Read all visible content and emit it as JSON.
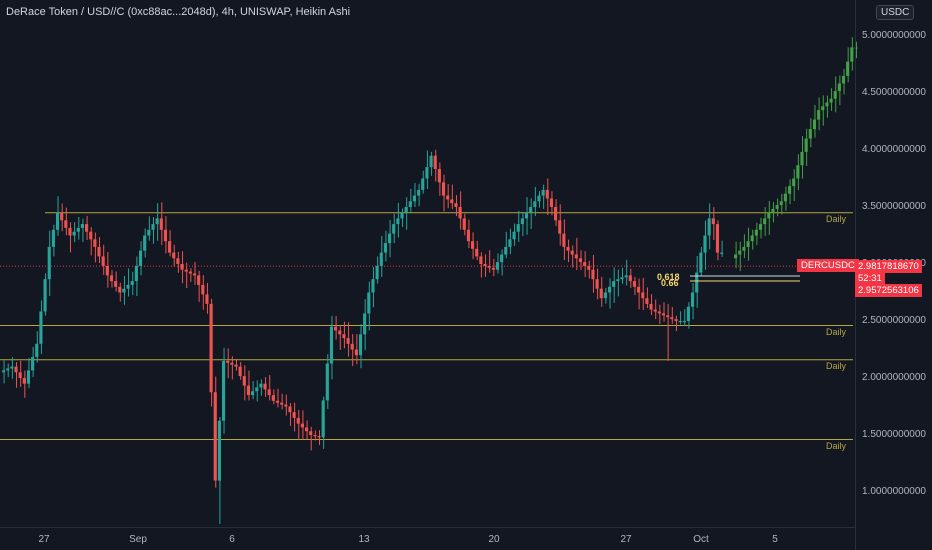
{
  "header": {
    "title": "DeRace Token / USD//C (0xc88ac...2048d), 4h, UNISWAP, Heikin Ashi",
    "currency": "USDC"
  },
  "y_axis": {
    "labels": [
      "5.0000000000",
      "4.5000000000",
      "4.0000000000",
      "3.5000000000",
      "3.0000000000",
      "2.5000000000",
      "2.0000000000",
      "1.5000000000",
      "1.0000000000"
    ]
  },
  "x_axis": {
    "labels": [
      "27",
      "Sep",
      "6",
      "13",
      "20",
      "27",
      "Oct",
      "5"
    ]
  },
  "levels": {
    "label": "Daily",
    "values": [
      3.45,
      2.46,
      2.16,
      1.46
    ]
  },
  "price_tags": {
    "symbol": "DERCUSDC",
    "price": "2.9817818670",
    "countdown": "52:31",
    "price2": "2.9572563106"
  },
  "fib": {
    "label1": "0.618",
    "label2": "0.66"
  },
  "colors": {
    "up": "#26a69a",
    "down": "#ef5350",
    "projection": "#43a047",
    "level": "#b5a642",
    "background": "#131722"
  },
  "chart_data": {
    "type": "candlestick",
    "chart_style": "Heikin Ashi",
    "interval": "4h",
    "exchange": "UNISWAP",
    "yrange": [
      0.7,
      5.2
    ],
    "xlabels": [
      "27",
      "Sep",
      "6",
      "13",
      "20",
      "27",
      "Oct",
      "5"
    ],
    "price_path": [
      [
        0,
        2.05
      ],
      [
        3,
        2.1
      ],
      [
        6,
        1.95
      ],
      [
        9,
        2.3
      ],
      [
        12,
        3.15
      ],
      [
        14,
        3.45
      ],
      [
        17,
        3.25
      ],
      [
        20,
        3.35
      ],
      [
        23,
        3.15
      ],
      [
        26,
        2.9
      ],
      [
        29,
        2.75
      ],
      [
        32,
        2.85
      ],
      [
        35,
        3.25
      ],
      [
        38,
        3.4
      ],
      [
        41,
        3.1
      ],
      [
        44,
        2.95
      ],
      [
        47,
        2.9
      ],
      [
        50,
        2.65
      ],
      [
        52,
        1.1
      ],
      [
        54,
        2.15
      ],
      [
        57,
        2.1
      ],
      [
        60,
        1.85
      ],
      [
        63,
        1.95
      ],
      [
        66,
        1.8
      ],
      [
        69,
        1.75
      ],
      [
        72,
        1.6
      ],
      [
        75,
        1.5
      ],
      [
        77,
        1.48
      ],
      [
        80,
        2.45
      ],
      [
        83,
        2.35
      ],
      [
        86,
        2.2
      ],
      [
        89,
        2.75
      ],
      [
        92,
        3.1
      ],
      [
        95,
        3.35
      ],
      [
        98,
        3.5
      ],
      [
        101,
        3.65
      ],
      [
        104,
        3.95
      ],
      [
        107,
        3.6
      ],
      [
        110,
        3.5
      ],
      [
        113,
        3.2
      ],
      [
        116,
        3.0
      ],
      [
        119,
        2.95
      ],
      [
        122,
        3.15
      ],
      [
        125,
        3.35
      ],
      [
        128,
        3.5
      ],
      [
        131,
        3.65
      ],
      [
        133,
        3.5
      ],
      [
        136,
        3.15
      ],
      [
        139,
        3.05
      ],
      [
        142,
        2.95
      ],
      [
        145,
        2.7
      ],
      [
        148,
        2.85
      ],
      [
        151,
        2.9
      ],
      [
        154,
        2.75
      ],
      [
        157,
        2.6
      ],
      [
        160,
        2.55
      ],
      [
        163,
        2.5
      ],
      [
        165,
        2.5
      ],
      [
        167,
        2.75
      ],
      [
        169,
        3.1
      ],
      [
        171,
        3.4
      ],
      [
        172,
        3.35
      ],
      [
        173,
        3.1
      ]
    ],
    "projection_path": [
      [
        173,
        3.05
      ],
      [
        176,
        3.15
      ],
      [
        179,
        3.3
      ],
      [
        182,
        3.45
      ],
      [
        185,
        3.55
      ],
      [
        188,
        3.75
      ],
      [
        191,
        4.1
      ],
      [
        194,
        4.35
      ],
      [
        197,
        4.45
      ],
      [
        200,
        4.65
      ],
      [
        202,
        4.9
      ]
    ],
    "horizontal_levels": [
      3.45,
      2.46,
      2.16,
      1.46
    ],
    "current_price": 2.981781867,
    "second_price": 2.9572563106,
    "fib_levels": [
      "0.618",
      "0.66"
    ]
  }
}
